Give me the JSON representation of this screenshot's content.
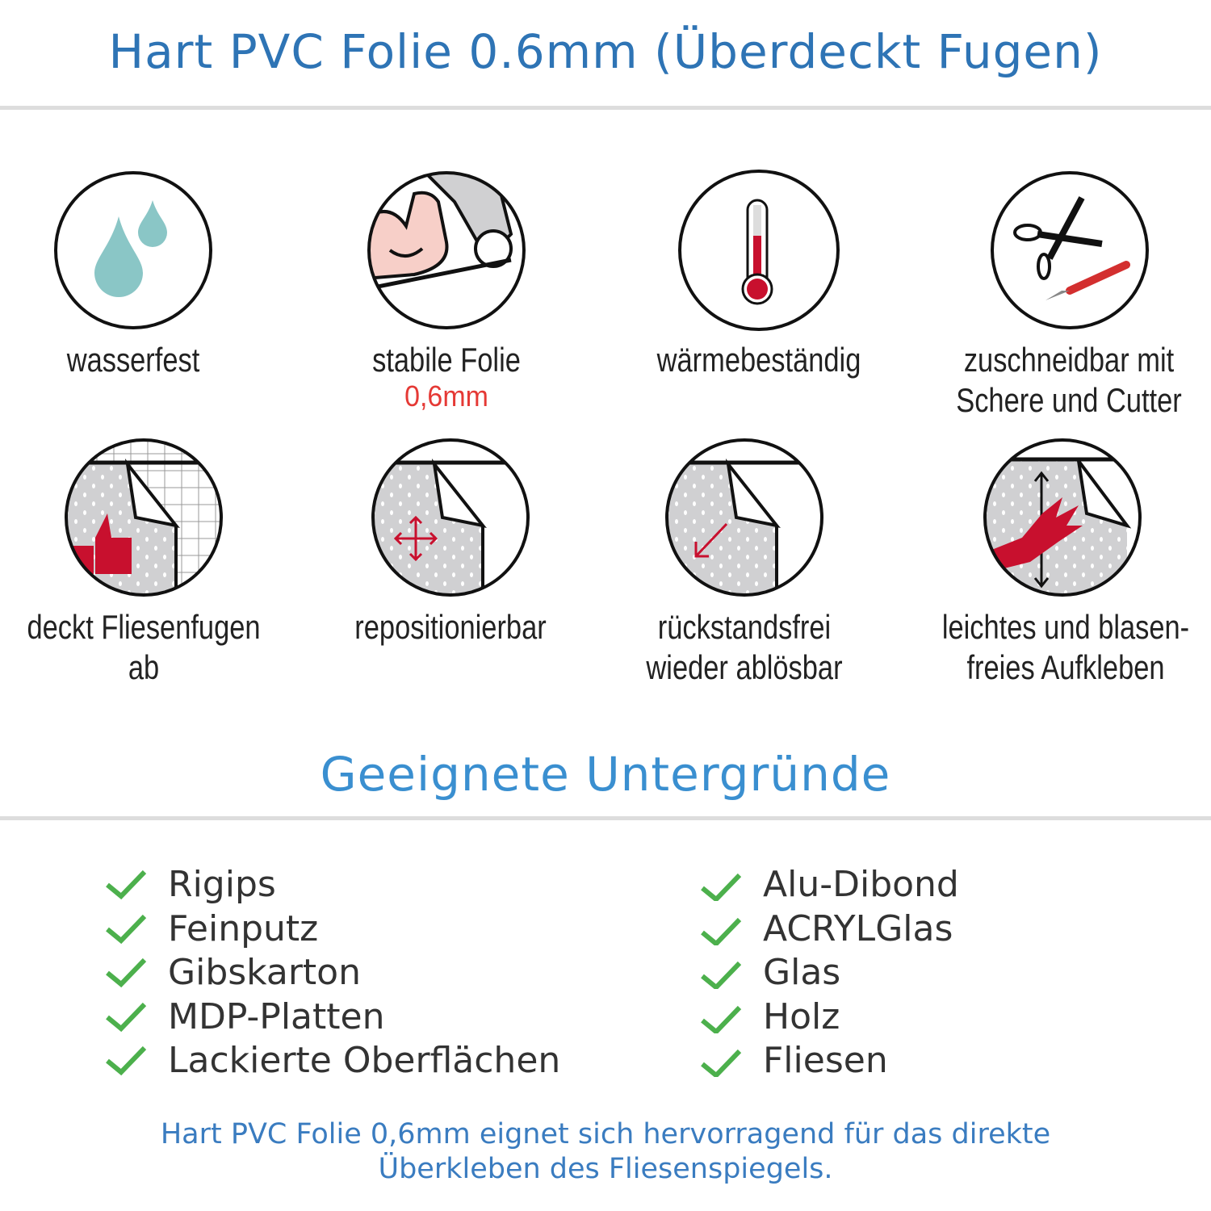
{
  "header": {
    "title": "Hart PVC Folie 0.6mm (Überdeckt Fugen)"
  },
  "features": [
    {
      "icon": "water-drops-icon",
      "label": "wasserfest"
    },
    {
      "icon": "strong-arm-foil-icon",
      "label": "stabile Folie",
      "sublabel": "0,6mm"
    },
    {
      "icon": "thermometer-icon",
      "label": "wärmebeständig"
    },
    {
      "icon": "scissors-cutter-icon",
      "label": "zuschneidbar mit",
      "label2": "Schere und Cutter"
    },
    {
      "icon": "thumbs-up-tiles-icon",
      "label": "deckt Fliesenfugen ab"
    },
    {
      "icon": "move-arrows-icon",
      "label": "repositionierbar"
    },
    {
      "icon": "peel-off-icon",
      "label": "rückstandsfrei",
      "label2": "wieder ablösbar"
    },
    {
      "icon": "hand-smoothing-icon",
      "label": "leichtes und blasen-",
      "label2": "freies Aufkleben"
    }
  ],
  "surfaces": {
    "title": "Geeignete Untergründe",
    "left": [
      "Rigips",
      "Feinputz",
      "Gibskarton",
      "MDP-Platten",
      "Lackierte Oberflächen"
    ],
    "right": [
      "Alu-Dibond",
      "ACRYLGlas",
      "Glas",
      "Holz",
      "Fliesen"
    ]
  },
  "footer": {
    "line1": "Hart PVC Folie 0,6mm eignet sich hervorragend für das direkte",
    "line2": "Überkleben des Fliesenspiegels."
  },
  "colors": {
    "title": "#2e74b5",
    "section": "#3a8fd0",
    "check": "#4cb04c",
    "accent_red": "#e53935",
    "icon_red": "#c8102e",
    "drop": "#8ac6c6"
  }
}
